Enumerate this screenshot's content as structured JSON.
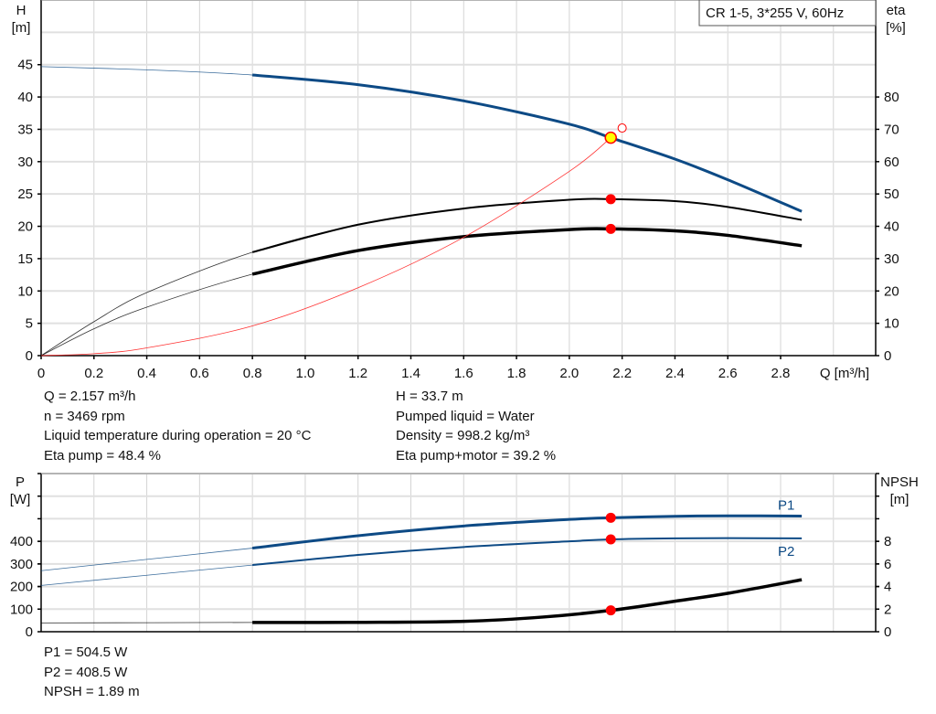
{
  "legend_box": "CR 1-5, 3*255 V, 60Hz",
  "colors": {
    "head": "#0d4a85",
    "eta": "#000000",
    "system": "#ff3333",
    "power": "#0d4a85",
    "npsh": "#000000",
    "duty_point": "#ff0000",
    "duty_fill": "#ffff00"
  },
  "chart_data": [
    {
      "type": "line",
      "xlabel": "Q [m³/h]",
      "ylabel_left": [
        "H",
        "[m]"
      ],
      "ylabel_right": [
        "eta",
        "[%]"
      ],
      "x_ticks": [
        "0",
        "0.2",
        "0.4",
        "0.6",
        "0.8",
        "1.0",
        "1.2",
        "1.4",
        "1.6",
        "1.8",
        "2.0",
        "2.2",
        "2.4",
        "2.6",
        "2.8"
      ],
      "y_left_ticks": [
        "0",
        "5",
        "10",
        "15",
        "20",
        "25",
        "30",
        "35",
        "40",
        "45"
      ],
      "y_right_ticks": [
        "0",
        "10",
        "20",
        "30",
        "40",
        "50",
        "60",
        "70",
        "80"
      ],
      "xlim": [
        0,
        3.16
      ],
      "ylim_left": [
        0,
        55
      ],
      "ylim_right": [
        0,
        110
      ],
      "grid": true,
      "series": [
        {
          "key": "H",
          "axis": "left",
          "color": "#0d4a85",
          "width": 3,
          "thick_from": 0.8,
          "x": [
            0,
            0.4,
            0.8,
            1.2,
            1.6,
            2.0,
            2.157,
            2.4,
            2.6,
            2.88
          ],
          "y": [
            44.7,
            44.2,
            43.4,
            41.9,
            39.4,
            35.8,
            33.7,
            30.4,
            27.2,
            22.3
          ]
        },
        {
          "key": "eta_pump",
          "axis": "right",
          "color": "#000000",
          "width": 2,
          "thick_from": 0.8,
          "x": [
            0,
            0.2,
            0.4,
            0.8,
            1.2,
            1.6,
            2.0,
            2.157,
            2.4,
            2.6,
            2.88
          ],
          "y": [
            0,
            10.5,
            19.5,
            32,
            40.5,
            45.5,
            48.2,
            48.4,
            47.8,
            46,
            42
          ]
        },
        {
          "key": "eta_pump_motor",
          "axis": "right",
          "color": "#000000",
          "width": 3.5,
          "thick_from": 0.8,
          "x": [
            0,
            0.2,
            0.4,
            0.8,
            1.2,
            1.6,
            2.0,
            2.157,
            2.4,
            2.6,
            2.88
          ],
          "y": [
            0,
            8.3,
            15,
            25.2,
            32.5,
            36.8,
            39,
            39.2,
            38.6,
            37.2,
            34
          ]
        },
        {
          "key": "system",
          "axis": "left",
          "color": "#ff3333",
          "width": 0.8,
          "thick_from": null,
          "x": [
            0,
            0.2,
            0.4,
            0.8,
            1.2,
            1.6,
            2.0,
            2.157
          ],
          "y": [
            0,
            0.3,
            1.2,
            4.6,
            10.5,
            18.3,
            28.5,
            33.7
          ]
        }
      ],
      "duty_points": [
        {
          "x": 2.157,
          "y": 33.7,
          "axis": "left",
          "style": "yellow"
        },
        {
          "x": 2.157,
          "y": 48.4,
          "axis": "right",
          "style": "red"
        },
        {
          "x": 2.157,
          "y": 39.2,
          "axis": "right",
          "style": "red"
        },
        {
          "x": 2.2,
          "y": 35.2,
          "axis": "left",
          "style": "open"
        }
      ]
    },
    {
      "type": "line",
      "ylabel_left": [
        "P",
        "[W]"
      ],
      "ylabel_right": [
        "NPSH",
        "[m]"
      ],
      "y_left_ticks": [
        "0",
        "100",
        "200",
        "300",
        "400"
      ],
      "y_right_ticks": [
        "0",
        "2",
        "4",
        "6",
        "8"
      ],
      "xlim": [
        0,
        3.16
      ],
      "ylim_left": [
        0,
        700
      ],
      "ylim_right": [
        0,
        14
      ],
      "grid": true,
      "series": [
        {
          "key": "P1",
          "name": "P1",
          "axis": "left",
          "color": "#0d4a85",
          "width": 3,
          "thick_from": 0.8,
          "x": [
            0,
            0.4,
            0.8,
            1.2,
            1.6,
            2.0,
            2.157,
            2.4,
            2.6,
            2.88
          ],
          "y": [
            270,
            320,
            370,
            425,
            468,
            497,
            504.5,
            511,
            513,
            512
          ]
        },
        {
          "key": "P2",
          "name": "P2",
          "axis": "left",
          "color": "#0d4a85",
          "width": 2,
          "thick_from": 0.8,
          "x": [
            0,
            0.4,
            0.8,
            1.2,
            1.6,
            2.0,
            2.157,
            2.4,
            2.6,
            2.88
          ],
          "y": [
            205,
            250,
            295,
            340,
            375,
            400,
            408.5,
            413,
            414,
            413
          ]
        },
        {
          "key": "NPSH",
          "axis": "right",
          "color": "#000000",
          "width": 3.5,
          "thick_from": 0.8,
          "x": [
            0,
            0.8,
            1.2,
            1.6,
            1.9,
            2.157,
            2.4,
            2.6,
            2.88
          ],
          "y": [
            0.78,
            0.82,
            0.83,
            0.92,
            1.3,
            1.89,
            2.7,
            3.4,
            4.6
          ]
        }
      ],
      "duty_points": [
        {
          "x": 2.157,
          "y": 504.5,
          "axis": "left",
          "style": "red"
        },
        {
          "x": 2.157,
          "y": 408.5,
          "axis": "left",
          "style": "red"
        },
        {
          "x": 2.157,
          "y": 1.89,
          "axis": "right",
          "style": "red"
        }
      ]
    }
  ],
  "info_top": {
    "left": [
      "Q = 2.157 m³/h",
      "n = 3469 rpm",
      "Liquid temperature during operation = 20 °C",
      "Eta pump = 48.4 %"
    ],
    "right": [
      "H = 33.7 m",
      "Pumped liquid = Water",
      "Density = 998.2 kg/m³",
      "Eta pump+motor = 39.2 %"
    ]
  },
  "info_bottom": [
    "P1 = 504.5 W",
    "P2 = 408.5 W",
    "NPSH = 1.89 m"
  ]
}
